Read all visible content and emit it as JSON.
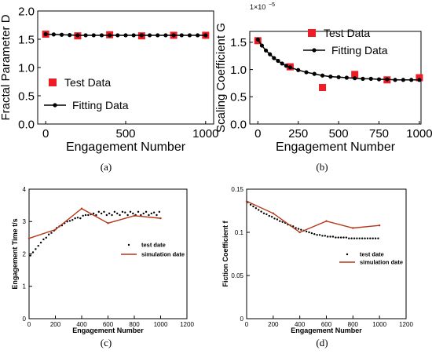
{
  "panels": [
    {
      "caption": "(a)",
      "chart_data": {
        "type": "scatter",
        "xlabel": "Engagement Number",
        "ylabel": "Fractal Parameter D",
        "xlim": [
          -50,
          1050
        ],
        "ylim": [
          0,
          2.0
        ],
        "xticks": [
          0,
          500,
          1000
        ],
        "xtick_labels": [
          "0",
          "500",
          "1000"
        ],
        "yticks": [
          0,
          0.5,
          1.0,
          1.5,
          2.0
        ],
        "ytick_labels": [
          "0.0",
          "0.5",
          "1.0",
          "1.5",
          "2.0"
        ],
        "grid": false,
        "legend_position": "lower-left",
        "series": [
          {
            "name": "Test Data",
            "marker": "square",
            "color": "#ee1c24",
            "x": [
              0,
              200,
              400,
              600,
              800,
              1000
            ],
            "y": [
              1.59,
              1.56,
              1.58,
              1.56,
              1.57,
              1.57
            ]
          },
          {
            "name": "Fitting Data",
            "marker": "dot-line",
            "color": "#000000",
            "x": [
              0,
              50,
              100,
              150,
              200,
              250,
              300,
              350,
              400,
              450,
              500,
              550,
              600,
              650,
              700,
              750,
              800,
              850,
              900,
              950,
              1000
            ],
            "y": [
              1.59,
              1.585,
              1.58,
              1.575,
              1.57,
              1.57,
              1.57,
              1.57,
              1.57,
              1.57,
              1.57,
              1.57,
              1.57,
              1.57,
              1.57,
              1.57,
              1.57,
              1.57,
              1.57,
              1.57,
              1.57
            ]
          }
        ]
      }
    },
    {
      "caption": "(b)",
      "chart_data": {
        "type": "scatter",
        "xlabel": "Engagement Number",
        "ylabel": "Scaling Coefficient G",
        "multiplier": "1×10",
        "multiplier_exp": "−5",
        "xlim": [
          -50,
          1010
        ],
        "ylim": [
          0,
          1.7
        ],
        "xticks": [
          0,
          250,
          500,
          750,
          1000
        ],
        "xtick_labels": [
          "0",
          "250",
          "500",
          "750",
          "1000"
        ],
        "yticks": [
          0,
          0.5,
          1.0,
          1.5
        ],
        "ytick_labels": [
          "0.0",
          "0.5",
          "1.0",
          "1.5"
        ],
        "grid": false,
        "legend_position": "top-right",
        "series": [
          {
            "name": "Test Data",
            "marker": "square",
            "color": "#ee1c24",
            "x": [
              0,
              200,
              400,
              600,
              800,
              1000
            ],
            "y": [
              1.53,
              1.05,
              0.67,
              0.91,
              0.81,
              0.85
            ]
          },
          {
            "name": "Fitting Data",
            "marker": "dot-line",
            "color": "#000000",
            "x": [
              0,
              25,
              50,
              75,
              100,
              125,
              150,
              175,
              200,
              250,
              300,
              350,
              400,
              450,
              500,
              550,
              600,
              650,
              700,
              750,
              800,
              850,
              900,
              950,
              1000
            ],
            "y": [
              1.55,
              1.44,
              1.35,
              1.28,
              1.21,
              1.16,
              1.11,
              1.07,
              1.04,
              0.99,
              0.95,
              0.92,
              0.89,
              0.87,
              0.86,
              0.85,
              0.84,
              0.83,
              0.83,
              0.82,
              0.82,
              0.81,
              0.81,
              0.81,
              0.81
            ]
          }
        ]
      }
    },
    {
      "caption": "(c)",
      "chart_data": {
        "type": "scatter",
        "xlabel": "Engagement Number",
        "ylabel": "Engagement Time t/s",
        "xlim": [
          0,
          1200
        ],
        "ylim": [
          0,
          4
        ],
        "xticks": [
          0,
          200,
          400,
          600,
          800,
          1000,
          1200
        ],
        "xtick_labels": [
          "0",
          "200",
          "400",
          "600",
          "800",
          "1000",
          "1200"
        ],
        "yticks": [
          0,
          1,
          2,
          3,
          4
        ],
        "ytick_labels": [
          "0",
          "1",
          "2",
          "3",
          "4"
        ],
        "grid": false,
        "legend_position": "center-right",
        "series": [
          {
            "name": "test date",
            "marker": "dots",
            "color": "#000000",
            "x": [
              10,
              30,
              50,
              70,
              90,
              110,
              130,
              150,
              170,
              190,
              210,
              230,
              250,
              270,
              290,
              310,
              330,
              350,
              370,
              390,
              410,
              430,
              450,
              470,
              490,
              510,
              530,
              550,
              570,
              590,
              610,
              630,
              650,
              670,
              690,
              710,
              730,
              750,
              770,
              790,
              810,
              830,
              850,
              870,
              890,
              910,
              930,
              950,
              970,
              990
            ],
            "y": [
              1.95,
              2.05,
              2.15,
              2.25,
              2.35,
              2.45,
              2.5,
              2.6,
              2.65,
              2.72,
              2.8,
              2.85,
              2.88,
              2.95,
              3.0,
              3.02,
              3.05,
              3.1,
              3.12,
              3.1,
              3.18,
              3.2,
              3.2,
              3.22,
              3.25,
              3.2,
              3.3,
              3.25,
              3.3,
              3.2,
              3.25,
              3.2,
              3.3,
              3.25,
              3.2,
              3.3,
              3.28,
              3.2,
              3.3,
              3.25,
              3.2,
              3.3,
              3.2,
              3.25,
              3.3,
              3.2,
              3.25,
              3.28,
              3.2,
              3.3
            ]
          },
          {
            "name": "simulation date",
            "marker": "line",
            "color": "#b5371a",
            "x": [
              0,
              200,
              400,
              600,
              800,
              1000
            ],
            "y": [
              2.48,
              2.75,
              3.4,
              2.95,
              3.18,
              3.1
            ]
          }
        ]
      }
    },
    {
      "caption": "(d)",
      "chart_data": {
        "type": "scatter",
        "xlabel": "Engagement Number",
        "ylabel": "Fiction Coefficient f",
        "xlim": [
          0,
          1200
        ],
        "ylim": [
          0,
          0.15
        ],
        "xticks": [
          0,
          200,
          400,
          600,
          800,
          1000,
          1200
        ],
        "xtick_labels": [
          "0",
          "200",
          "400",
          "600",
          "800",
          "1000",
          "1200"
        ],
        "yticks": [
          0,
          0.05,
          0.1,
          0.15
        ],
        "ytick_labels": [
          "0",
          "0.05",
          "0.1",
          "0.15"
        ],
        "grid": false,
        "legend_position": "center-right",
        "series": [
          {
            "name": "test date",
            "marker": "dots",
            "color": "#000000",
            "x": [
              10,
              30,
              50,
              70,
              90,
              110,
              130,
              150,
              170,
              190,
              210,
              230,
              250,
              270,
              290,
              310,
              330,
              350,
              370,
              390,
              410,
              430,
              450,
              470,
              490,
              510,
              530,
              550,
              570,
              590,
              610,
              630,
              650,
              670,
              690,
              710,
              730,
              750,
              770,
              790,
              810,
              830,
              850,
              870,
              890,
              910,
              930,
              950,
              970,
              990
            ],
            "y": [
              0.135,
              0.132,
              0.13,
              0.128,
              0.126,
              0.124,
              0.122,
              0.121,
              0.119,
              0.118,
              0.116,
              0.115,
              0.113,
              0.112,
              0.111,
              0.109,
              0.108,
              0.107,
              0.105,
              0.104,
              0.103,
              0.102,
              0.101,
              0.1,
              0.099,
              0.098,
              0.097,
              0.097,
              0.096,
              0.096,
              0.095,
              0.095,
              0.095,
              0.094,
              0.094,
              0.094,
              0.094,
              0.094,
              0.093,
              0.093,
              0.093,
              0.093,
              0.093,
              0.093,
              0.093,
              0.093,
              0.093,
              0.093,
              0.093,
              0.093
            ]
          },
          {
            "name": "simulation date",
            "marker": "line",
            "color": "#b5371a",
            "x": [
              0,
              200,
              400,
              600,
              800,
              1000
            ],
            "y": [
              0.136,
              0.122,
              0.1,
              0.113,
              0.105,
              0.108
            ]
          }
        ]
      }
    }
  ]
}
